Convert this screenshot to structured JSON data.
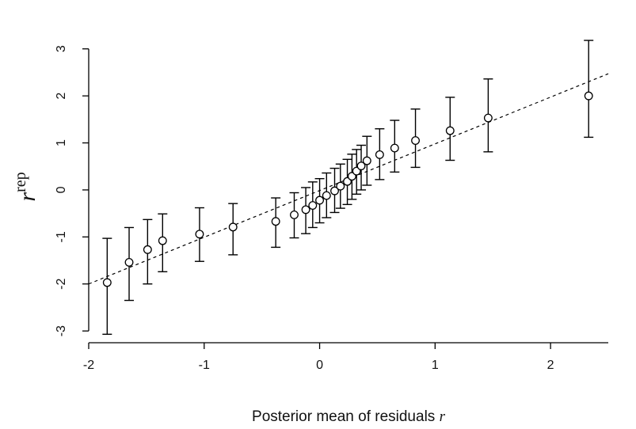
{
  "chart_data": {
    "type": "scatter",
    "title": "",
    "xlabel": "Posterior mean of residuals",
    "xlabel_var": "r",
    "ylabel": "r",
    "ylabel_sup": "rep",
    "xlim": [
      -2.0,
      2.5
    ],
    "ylim": [
      -3.25,
      3.45
    ],
    "xticks": [
      -2,
      -1,
      0,
      1,
      2
    ],
    "yticks": [
      -3,
      -2,
      -1,
      0,
      1,
      2,
      3
    ],
    "xtick_labels": [
      "-2",
      "-1",
      "0",
      "1",
      "2"
    ],
    "ytick_labels": [
      "-3",
      "-2",
      "-1",
      "0",
      "1",
      "2",
      "3"
    ],
    "grid": false,
    "reference_line": {
      "style": "dashed",
      "x": [
        -2.0,
        2.5
      ],
      "y": [
        -2.0,
        2.47
      ]
    },
    "points": [
      {
        "x": -1.84,
        "y": -1.97,
        "lo": -3.07,
        "hi": -1.03
      },
      {
        "x": -1.65,
        "y": -1.54,
        "lo": -2.35,
        "hi": -0.8
      },
      {
        "x": -1.49,
        "y": -1.27,
        "lo": -2.0,
        "hi": -0.63
      },
      {
        "x": -1.36,
        "y": -1.08,
        "lo": -1.74,
        "hi": -0.51
      },
      {
        "x": -1.04,
        "y": -0.94,
        "lo": -1.52,
        "hi": -0.38
      },
      {
        "x": -0.75,
        "y": -0.79,
        "lo": -1.38,
        "hi": -0.29
      },
      {
        "x": -0.38,
        "y": -0.67,
        "lo": -1.22,
        "hi": -0.17
      },
      {
        "x": -0.22,
        "y": -0.53,
        "lo": -1.02,
        "hi": -0.06
      },
      {
        "x": -0.12,
        "y": -0.42,
        "lo": -0.93,
        "hi": 0.05
      },
      {
        "x": -0.06,
        "y": -0.33,
        "lo": -0.8,
        "hi": 0.17
      },
      {
        "x": 0.0,
        "y": -0.22,
        "lo": -0.7,
        "hi": 0.24
      },
      {
        "x": 0.06,
        "y": -0.12,
        "lo": -0.59,
        "hi": 0.36
      },
      {
        "x": 0.13,
        "y": -0.02,
        "lo": -0.48,
        "hi": 0.46
      },
      {
        "x": 0.18,
        "y": 0.08,
        "lo": -0.39,
        "hi": 0.55
      },
      {
        "x": 0.24,
        "y": 0.18,
        "lo": -0.31,
        "hi": 0.65
      },
      {
        "x": 0.28,
        "y": 0.29,
        "lo": -0.2,
        "hi": 0.76
      },
      {
        "x": 0.32,
        "y": 0.4,
        "lo": -0.09,
        "hi": 0.86
      },
      {
        "x": 0.36,
        "y": 0.51,
        "lo": 0.0,
        "hi": 0.95
      },
      {
        "x": 0.41,
        "y": 0.62,
        "lo": 0.1,
        "hi": 1.14
      },
      {
        "x": 0.52,
        "y": 0.75,
        "lo": 0.22,
        "hi": 1.3
      },
      {
        "x": 0.65,
        "y": 0.89,
        "lo": 0.38,
        "hi": 1.48
      },
      {
        "x": 0.83,
        "y": 1.05,
        "lo": 0.48,
        "hi": 1.72
      },
      {
        "x": 1.13,
        "y": 1.26,
        "lo": 0.63,
        "hi": 1.97
      },
      {
        "x": 1.46,
        "y": 1.53,
        "lo": 0.81,
        "hi": 2.36
      },
      {
        "x": 2.33,
        "y": 2.0,
        "lo": 1.12,
        "hi": 3.18
      }
    ]
  }
}
